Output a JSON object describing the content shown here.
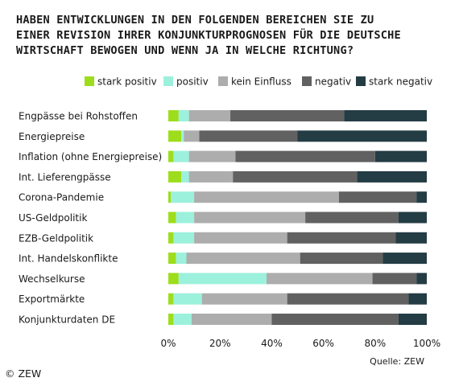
{
  "chart_data": {
    "type": "bar",
    "orientation": "horizontal",
    "stacked": true,
    "title_lines": [
      "HABEN ENTWICKLUNGEN IN DEN FOLGENDEN BEREICHEN SIE ZU",
      "EINER REVISION IHRER KONJUNKTURPROGNOSEN FÜR DIE DEUTSCHE",
      "WIRTSCHAFT BEWOGEN UND WENN JA IN WELCHE RICHTUNG?"
    ],
    "categories": [
      "Engpässe bei Rohstoffen",
      "Energiepreise",
      "Inflation (ohne Energiepreise)",
      "Int. Lieferengpässe",
      "Corona-Pandemie",
      "US-Geldpolitik",
      "EZB-Geldpolitik",
      "Int. Handelskonflikte",
      "Wechselkurse",
      "Exportmärkte",
      "Konjunkturdaten DE"
    ],
    "series": [
      {
        "name": "stark positiv",
        "color": "#9ddd1c",
        "values": [
          4,
          5,
          2,
          5,
          1,
          3,
          2,
          3,
          4,
          2,
          2
        ]
      },
      {
        "name": "positiv",
        "color": "#9cf1dc",
        "values": [
          4,
          1,
          6,
          3,
          9,
          7,
          8,
          4,
          34,
          11,
          7
        ]
      },
      {
        "name": "kein Einfluss",
        "color": "#adadad",
        "values": [
          16,
          6,
          18,
          17,
          56,
          43,
          36,
          44,
          41,
          33,
          31
        ]
      },
      {
        "name": "negativ",
        "color": "#616161",
        "values": [
          44,
          38,
          54,
          48,
          30,
          36,
          42,
          32,
          17,
          47,
          49
        ]
      },
      {
        "name": "stark negativ",
        "color": "#243c44",
        "values": [
          32,
          50,
          20,
          27,
          4,
          11,
          12,
          17,
          4,
          7,
          11
        ]
      }
    ],
    "x_ticks": [
      "0%",
      "20%",
      "40%",
      "60%",
      "80%",
      "100%"
    ],
    "xlim": [
      0,
      100
    ],
    "legend_position": "top",
    "grid": false
  },
  "source": "Quelle: ZEW",
  "copyright": "© ZEW"
}
